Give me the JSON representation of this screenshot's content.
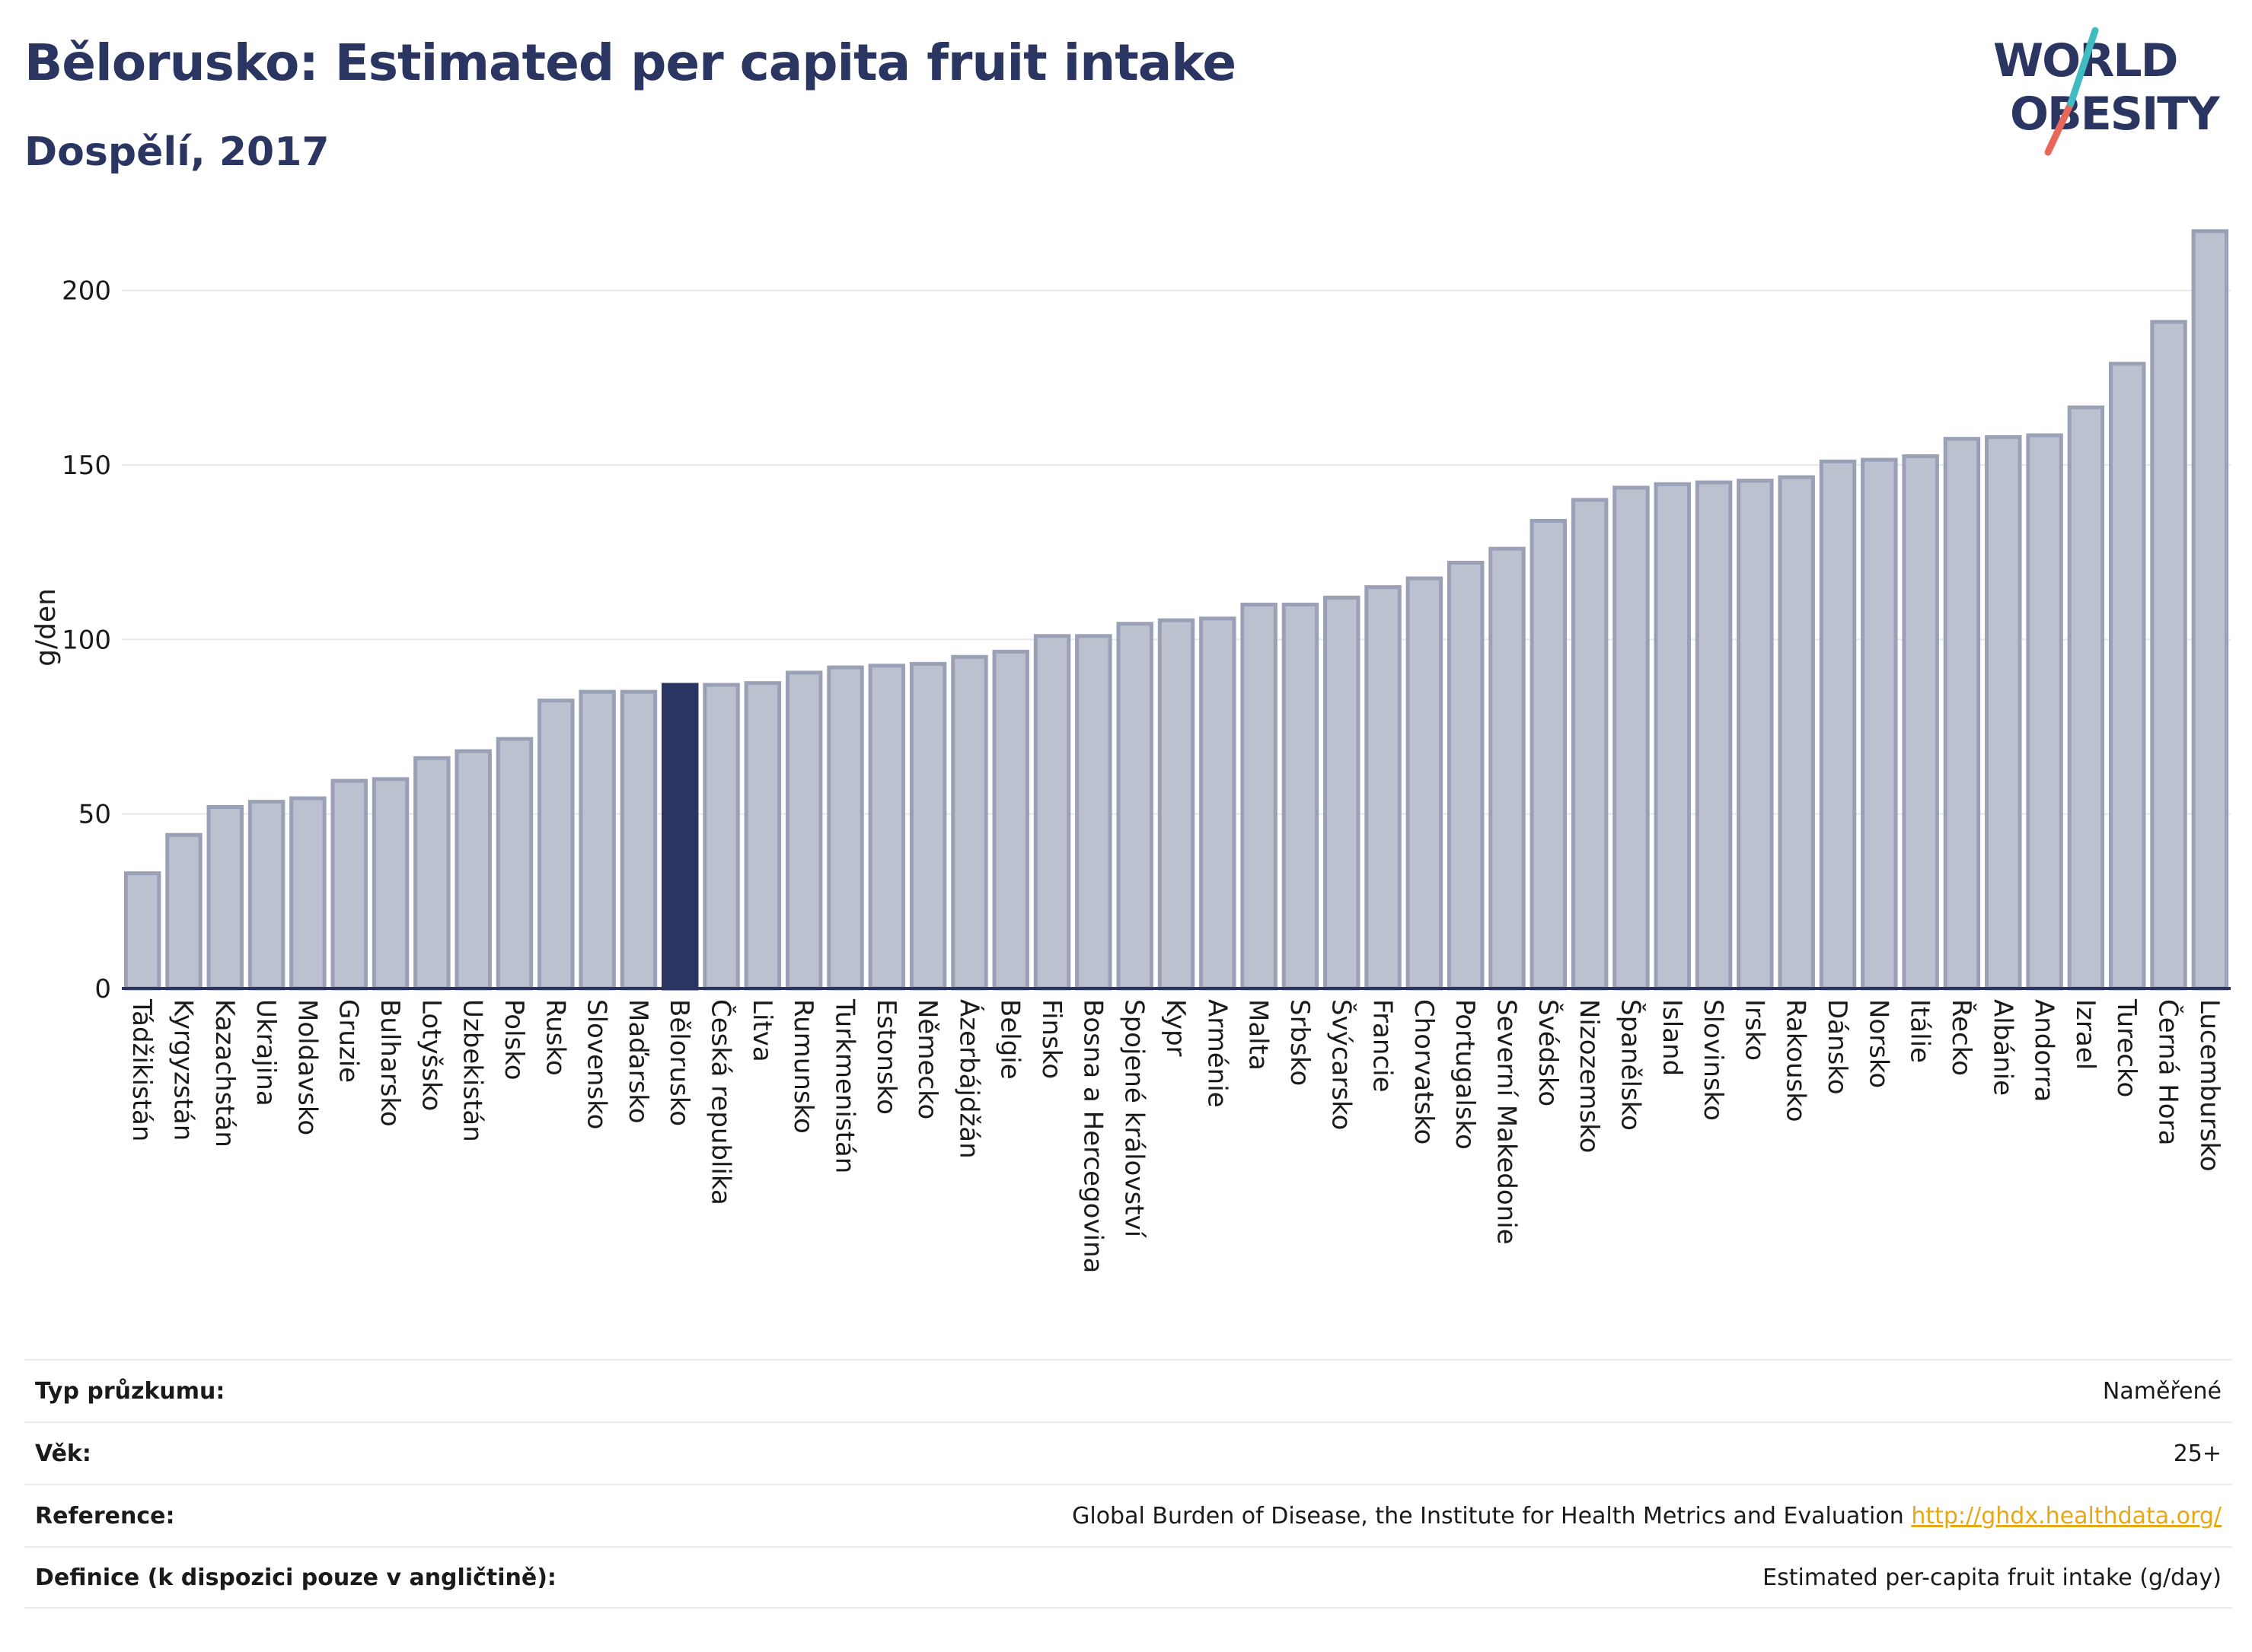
{
  "title": "Bělorusko: Estimated per capita fruit intake",
  "subtitle": "Dospělí, 2017",
  "logo": {
    "line1": "WORLD",
    "line2": "OBESITY"
  },
  "colors": {
    "bar": "#bcc1d0",
    "bar_stroke": "#9aa1b6",
    "highlight": "#2b3561",
    "grid": "#e8e8e8",
    "accent_teal": "#3fbcc0",
    "accent_coral": "#e8665a"
  },
  "chart_data": {
    "type": "bar",
    "ylabel": "g/den",
    "ylim": [
      0,
      220
    ],
    "yticks": [
      0,
      50,
      100,
      150,
      200
    ],
    "highlight": "Bělorusko",
    "categories": [
      "Tádžikistán",
      "Kyrgyzstán",
      "Kazachstán",
      "Ukrajina",
      "Moldavsko",
      "Gruzie",
      "Bulharsko",
      "Lotyšsko",
      "Uzbekistán",
      "Polsko",
      "Rusko",
      "Slovensko",
      "Maďarsko",
      "Bělorusko",
      "Česká republika",
      "Litva",
      "Rumunsko",
      "Turkmenistán",
      "Estonsko",
      "Německo",
      "Ázerbájdžán",
      "Belgie",
      "Finsko",
      "Bosna a Hercegovina",
      "Spojené království",
      "Kypr",
      "Arménie",
      "Malta",
      "Srbsko",
      "Švýcarsko",
      "Francie",
      "Chorvatsko",
      "Portugalsko",
      "Severní Makedonie",
      "Švédsko",
      "Nizozemsko",
      "Španělsko",
      "Island",
      "Slovinsko",
      "Irsko",
      "Rakousko",
      "Dánsko",
      "Norsko",
      "Itálie",
      "Řecko",
      "Albánie",
      "Andorra",
      "Izrael",
      "Turecko",
      "Černá Hora",
      "Lucembursko"
    ],
    "values": [
      33,
      44,
      52,
      53.5,
      54.5,
      59.5,
      60,
      66,
      68,
      71.5,
      82.5,
      85,
      85,
      87,
      87,
      87.5,
      90.5,
      92,
      92.5,
      93,
      95,
      96.5,
      101,
      101,
      104.5,
      105.5,
      106,
      110,
      110,
      112,
      115,
      117.5,
      122,
      126,
      134,
      140,
      143.5,
      144.5,
      145,
      145.5,
      146.5,
      151,
      151.5,
      152.5,
      157.5,
      158,
      158.5,
      166.5,
      179,
      191,
      217
    ]
  },
  "info": [
    {
      "label": "Typ průzkumu:",
      "value": "Naměřené"
    },
    {
      "label": "Věk:",
      "value": "25+"
    },
    {
      "label": "Reference:",
      "value": "Global Burden of Disease, the Institute for Health Metrics and Evaluation",
      "link": "http://ghdx.healthdata.org/"
    },
    {
      "label": "Definice (k dispozici pouze v angličtině):",
      "value": "Estimated per-capita fruit intake (g/day)"
    }
  ]
}
